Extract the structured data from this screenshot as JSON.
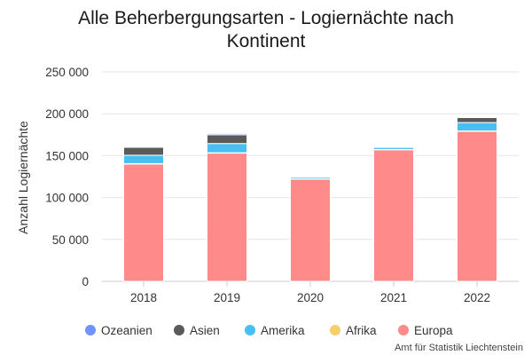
{
  "chart_data": {
    "type": "bar",
    "stacked": true,
    "title_lines": [
      "Alle Beherbergungsarten - Logiernächte nach",
      "Kontinent"
    ],
    "ylabel": "Anzahl Logiernächte",
    "xlabel": "",
    "ylim": [
      0,
      250000
    ],
    "yticks": [
      0,
      50000,
      100000,
      150000,
      200000,
      250000
    ],
    "ytick_labels": [
      "0",
      "50 000",
      "100 000",
      "150 000",
      "200 000",
      "250 000"
    ],
    "categories": [
      "2018",
      "2019",
      "2020",
      "2021",
      "2022"
    ],
    "series": [
      {
        "name": "Europa",
        "color": "#ff8a8a",
        "values": [
          140000,
          153000,
          122000,
          157000,
          179000
        ]
      },
      {
        "name": "Afrika",
        "color": "#f7cf6a",
        "values": [
          500,
          500,
          300,
          400,
          500
        ]
      },
      {
        "name": "Amerika",
        "color": "#47bff0",
        "values": [
          10000,
          11000,
          2000,
          2500,
          10000
        ]
      },
      {
        "name": "Asien",
        "color": "#5a5a5a",
        "values": [
          9500,
          10500,
          800,
          700,
          6000
        ]
      },
      {
        "name": "Ozeanien",
        "color": "#6f93ff",
        "values": [
          500,
          1500,
          200,
          300,
          500
        ]
      }
    ],
    "legend_order": [
      "Ozeanien",
      "Asien",
      "Amerika",
      "Afrika",
      "Europa"
    ],
    "legend_position": "bottom",
    "grid": true
  },
  "credit": "Amt für Statistik Liechtenstein"
}
